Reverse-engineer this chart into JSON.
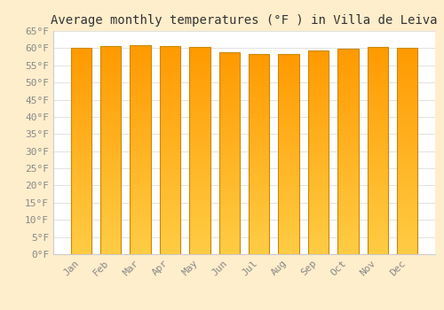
{
  "title": "Average monthly temperatures (°F ) in Villa de Leiva",
  "months": [
    "Jan",
    "Feb",
    "Mar",
    "Apr",
    "May",
    "Jun",
    "Jul",
    "Aug",
    "Sep",
    "Oct",
    "Nov",
    "Dec"
  ],
  "values": [
    60.0,
    60.6,
    61.0,
    60.5,
    60.4,
    58.8,
    58.4,
    58.4,
    59.2,
    59.9,
    60.3,
    60.0
  ],
  "bar_color_bottom": "#FFCC44",
  "bar_color_top": "#FF9900",
  "bar_edge_color": "#CC8800",
  "background_color": "#FFEECC",
  "plot_bg_color": "#FFFFFF",
  "ylim": [
    0,
    65
  ],
  "yticks": [
    0,
    5,
    10,
    15,
    20,
    25,
    30,
    35,
    40,
    45,
    50,
    55,
    60,
    65
  ],
  "ytick_labels": [
    "0°F",
    "5°F",
    "10°F",
    "15°F",
    "20°F",
    "25°F",
    "30°F",
    "35°F",
    "40°F",
    "45°F",
    "50°F",
    "55°F",
    "60°F",
    "65°F"
  ],
  "grid_color": "#DDDDDD",
  "title_fontsize": 10,
  "tick_fontsize": 8,
  "tick_color": "#888888",
  "bar_width": 0.7
}
